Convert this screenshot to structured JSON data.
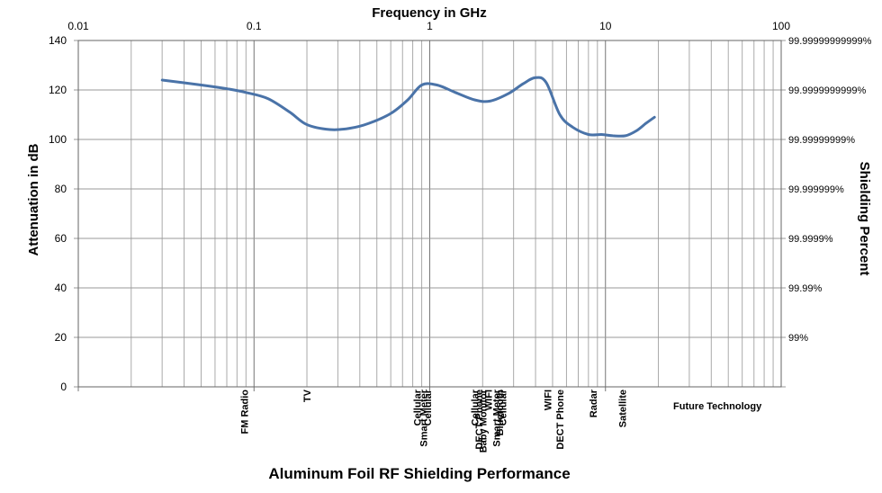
{
  "chart_data": {
    "type": "line",
    "title": "Aluminum Foil RF Shielding Performance",
    "xlabel": "Frequency in GHz",
    "ylabel": "Attenuation in dB",
    "y2label": "Shielding Percent",
    "xscale": "log",
    "xlim": [
      0.01,
      100
    ],
    "ylim": [
      0,
      140
    ],
    "x_ticks": [
      "0.01",
      "0.1",
      "1",
      "10",
      "100"
    ],
    "y_ticks": [
      "0",
      "20",
      "40",
      "60",
      "80",
      "100",
      "120",
      "140"
    ],
    "y2_ticks": [
      "99%",
      "99.99%",
      "99.9999%",
      "99.999999%",
      "99.99999999%",
      "99.9999999999%",
      "99.99999999999%"
    ],
    "grid": true,
    "series": [
      {
        "color": "#4a73a8",
        "x": [
          0.03,
          0.05,
          0.07,
          0.09,
          0.12,
          0.16,
          0.2,
          0.27,
          0.35,
          0.45,
          0.6,
          0.75,
          0.9,
          1.1,
          1.4,
          1.8,
          2.2,
          2.8,
          3.4,
          4.0,
          4.6,
          5.5,
          6.5,
          8.0,
          9.5,
          11.0,
          13.0,
          15.0,
          17.0,
          19.0
        ],
        "y": [
          124,
          122,
          120.5,
          119,
          116.5,
          111,
          106,
          104,
          104.5,
          106.5,
          110.5,
          116,
          122,
          122,
          119,
          116,
          115.5,
          118.5,
          122.5,
          125,
          123,
          110,
          105,
          102,
          102,
          101.5,
          101.5,
          103.5,
          106.5,
          109
        ]
      }
    ],
    "applications": [
      {
        "label": "FM Radio",
        "x": 0.088
      },
      {
        "label": "TV",
        "x": 0.2
      },
      {
        "label": "Cellular",
        "x": 0.85
      },
      {
        "label": "Smart Meter",
        "x": 0.92
      },
      {
        "label": "Cellular",
        "x": 0.97
      },
      {
        "label": "Cellular",
        "x": 1.8
      },
      {
        "label": "DECT Phone",
        "x": 1.9
      },
      {
        "label": "Baby Monitor",
        "x": 2.0
      },
      {
        "label": "WIFI",
        "x": 2.15
      },
      {
        "label": "Smart Meter",
        "x": 2.4
      },
      {
        "label": "Bluetooth",
        "x": 2.5
      },
      {
        "label": "Cellular",
        "x": 2.6
      },
      {
        "label": "WIFI",
        "x": 4.7
      },
      {
        "label": "DECT Phone",
        "x": 5.5
      },
      {
        "label": "Radar",
        "x": 8.5
      },
      {
        "label": "Satellite",
        "x": 12.5
      }
    ],
    "future_label": "Future Technology"
  }
}
